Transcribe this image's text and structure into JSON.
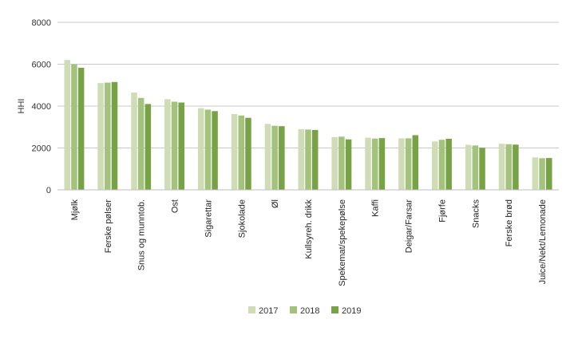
{
  "chart_data": {
    "type": "bar",
    "title": "",
    "xlabel": "",
    "ylabel": "HHI",
    "ylim": [
      0,
      8000
    ],
    "yticks": [
      0,
      2000,
      4000,
      6000,
      8000
    ],
    "yticklabels": [
      "0",
      "2000",
      "4000",
      "6000",
      "8000"
    ],
    "grid": true,
    "legend": "bottom",
    "categories": [
      "Mjølk",
      "Ferske pølser",
      "Snus og munntob.",
      "Ost",
      "Sigarettar",
      "Sjokolade",
      "Øl",
      "Kullsyreh. drikk",
      "Spekemat/spekepølse",
      "Kaffi",
      "Deigar/Farsar",
      "Fjørfe",
      "Snacks",
      "Ferske brød",
      "Juice/Nekt/Lemonade"
    ],
    "series": [
      {
        "name": "2017",
        "color": "#cfdcb6",
        "values": [
          6200,
          5100,
          4650,
          4330,
          3900,
          3620,
          3150,
          2900,
          2520,
          2490,
          2460,
          2310,
          2150,
          2200,
          1550
        ]
      },
      {
        "name": "2018",
        "color": "#a3c27c",
        "values": [
          6000,
          5120,
          4390,
          4210,
          3830,
          3550,
          3060,
          2880,
          2540,
          2450,
          2460,
          2390,
          2120,
          2180,
          1510
        ]
      },
      {
        "name": "2019",
        "color": "#77a245",
        "values": [
          5830,
          5150,
          4100,
          4170,
          3760,
          3440,
          3040,
          2860,
          2410,
          2470,
          2610,
          2440,
          2010,
          2160,
          1520
        ]
      }
    ]
  }
}
